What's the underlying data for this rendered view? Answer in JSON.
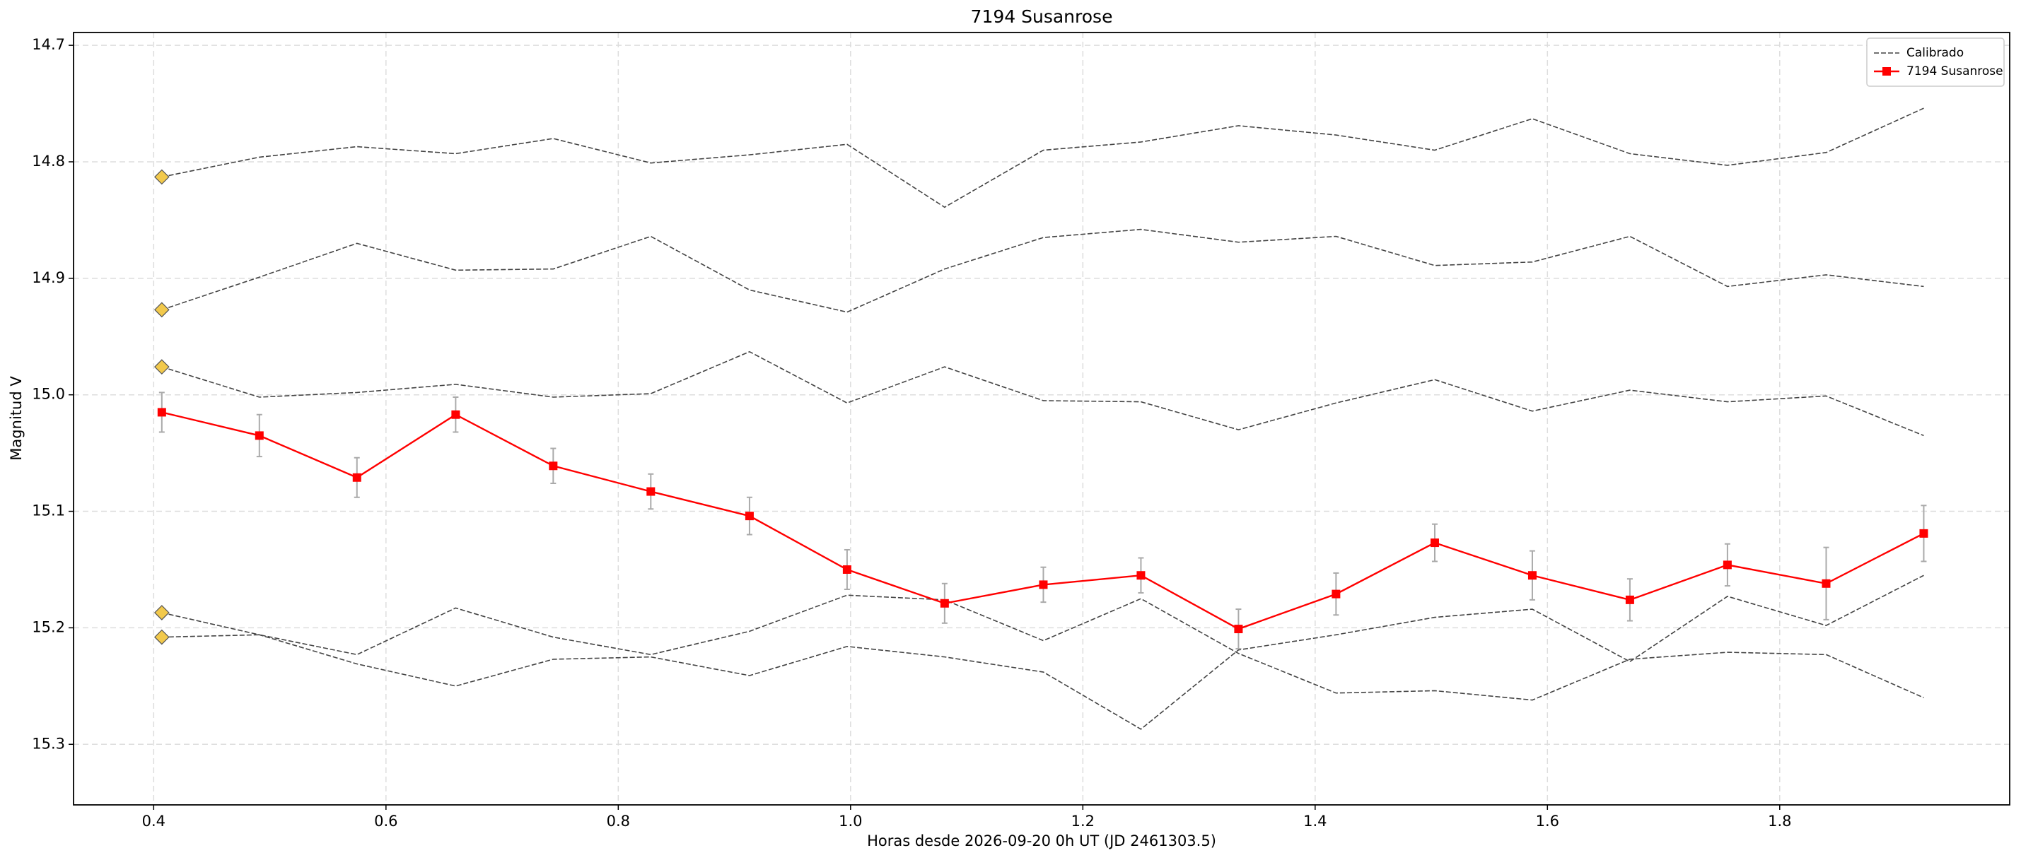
{
  "chart_data": {
    "type": "line",
    "title": "7194 Susanrose",
    "x_label": "Horas desde 2026-09-20 0h UT (JD 2461303.5)",
    "y_label": "Magnitud V",
    "x": [
      0.407,
      0.491,
      0.575,
      0.66,
      0.744,
      0.828,
      0.913,
      0.997,
      1.081,
      1.166,
      1.25,
      1.334,
      1.418,
      1.503,
      1.587,
      1.671,
      1.755,
      1.84,
      1.924
    ],
    "xlim": [
      0.331,
      1.998
    ],
    "xticks": [
      0.4,
      0.6,
      0.8,
      {
        "value": 1,
        "label": "1.0"
      },
      1.2,
      1.4,
      1.6,
      1.8
    ],
    "ylim": [
      14.689,
      15.352
    ],
    "y_inverted": true,
    "yticks": [
      14.7,
      14.8,
      14.9,
      {
        "value": 15,
        "label": "15.0"
      },
      15.1,
      15.2,
      15.3
    ],
    "grid": true,
    "legend": "upper right",
    "start_marker_color": "#f2c94c",
    "series": [
      {
        "name": "Calibrado",
        "color": "#444444",
        "style": "dashed",
        "values": [
          14.813,
          14.796,
          14.787,
          14.793,
          14.78,
          14.801,
          14.794,
          14.785,
          14.839,
          14.79,
          14.783,
          14.769,
          14.777,
          14.79,
          14.763,
          14.793,
          14.803,
          14.792,
          14.754
        ]
      },
      {
        "color": "#444444",
        "style": "dashed",
        "values": [
          14.927,
          14.899,
          14.87,
          14.893,
          14.892,
          14.864,
          14.91,
          14.929,
          14.892,
          14.865,
          14.858,
          14.869,
          14.864,
          14.889,
          14.886,
          14.864,
          14.907,
          14.897,
          14.907
        ]
      },
      {
        "color": "#444444",
        "style": "dashed",
        "values": [
          14.976,
          15.002,
          14.998,
          14.991,
          15.002,
          14.999,
          14.963,
          15.007,
          14.976,
          15.005,
          15.006,
          15.03,
          15.007,
          14.987,
          15.014,
          14.996,
          15.006,
          15.001,
          15.035
        ]
      },
      {
        "color": "#444444",
        "style": "dashed",
        "values": [
          15.187,
          15.206,
          15.231,
          15.25,
          15.227,
          15.225,
          15.241,
          15.216,
          15.225,
          15.238,
          15.287,
          15.219,
          15.206,
          15.191,
          15.184,
          15.229,
          15.173,
          15.198,
          15.155
        ]
      },
      {
        "color": "#444444",
        "style": "dashed",
        "values": [
          15.208,
          15.206,
          15.223,
          15.183,
          15.208,
          15.223,
          15.203,
          15.172,
          15.176,
          15.211,
          15.175,
          15.222,
          15.256,
          15.254,
          15.262,
          15.227,
          15.221,
          15.223,
          15.26
        ]
      },
      {
        "name": "7194 Susanrose",
        "color": "#ff0000",
        "style": "solid",
        "marker": "square",
        "error_color": "#aaaaaa",
        "values": [
          15.015,
          15.035,
          15.071,
          15.017,
          15.061,
          15.083,
          15.104,
          15.15,
          15.179,
          15.163,
          15.155,
          15.201,
          15.171,
          15.127,
          15.155,
          15.176,
          15.146,
          15.162,
          15.119
        ],
        "errors": [
          0.017,
          0.018,
          0.017,
          0.015,
          0.015,
          0.015,
          0.016,
          0.017,
          0.017,
          0.015,
          0.015,
          0.017,
          0.018,
          0.016,
          0.021,
          0.018,
          0.018,
          0.031,
          0.024
        ]
      }
    ]
  }
}
